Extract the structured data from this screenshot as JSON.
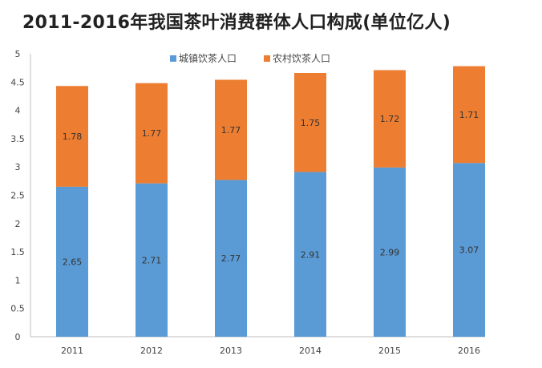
{
  "chart_data": {
    "type": "bar",
    "stacked": true,
    "title": "2011-2016年我国茶叶消费群体人口构成(单位亿人)",
    "xlabel": "",
    "ylabel": "",
    "categories": [
      "2011",
      "2012",
      "2013",
      "2014",
      "2015",
      "2016"
    ],
    "series": [
      {
        "name": "城镇饮茶人口",
        "color": "#5B9BD5",
        "values": [
          2.65,
          2.71,
          2.77,
          2.91,
          2.99,
          3.07
        ],
        "labels": [
          "2.65",
          "2.71",
          "2.77",
          "2.91",
          "2.99",
          "3.07"
        ]
      },
      {
        "name": "农村饮茶人口",
        "color": "#ED7D31",
        "values": [
          1.78,
          1.77,
          1.77,
          1.75,
          1.72,
          1.71
        ],
        "labels": [
          "1.78",
          "1.77",
          "1.77",
          "1.75",
          "1.72",
          "1.71"
        ]
      }
    ],
    "ylim": [
      0,
      5
    ],
    "yticks": [
      "0",
      "0.5",
      "1",
      "1.5",
      "2",
      "2.5",
      "3",
      "3.5",
      "4",
      "4.5",
      "5"
    ],
    "grid": false,
    "legend_position": "top-center"
  }
}
